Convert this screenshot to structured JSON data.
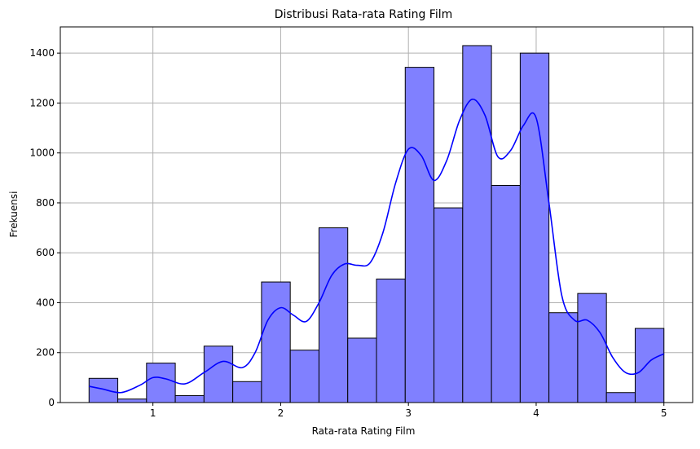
{
  "chart_data": {
    "type": "bar",
    "title": "Distribusi Rata-rata Rating Film",
    "xlabel": "Rata-rata Rating Film",
    "ylabel": "Frekuensi",
    "xlim": [
      0.275,
      5.225
    ],
    "ylim": [
      0,
      1505
    ],
    "grid": true,
    "x_ticks": [
      1,
      2,
      3,
      4,
      5
    ],
    "y_ticks": [
      0,
      200,
      400,
      600,
      800,
      1000,
      1200,
      1400
    ],
    "bin_edges": [
      0.5,
      0.725,
      0.95,
      1.175,
      1.4,
      1.625,
      1.85,
      2.075,
      2.3,
      2.525,
      2.75,
      2.975,
      3.2,
      3.425,
      3.65,
      3.875,
      4.1,
      4.325,
      4.55,
      4.775,
      5.0
    ],
    "values": [
      97,
      14,
      158,
      28,
      226,
      84,
      483,
      210,
      700,
      258,
      495,
      1343,
      780,
      1430,
      870,
      1400,
      360,
      437,
      40,
      297
    ],
    "kde": {
      "x": [
        0.5,
        0.6,
        0.75,
        0.9,
        1.0,
        1.1,
        1.25,
        1.4,
        1.55,
        1.7,
        1.8,
        1.9,
        2.0,
        2.1,
        2.2,
        2.3,
        2.4,
        2.5,
        2.6,
        2.7,
        2.8,
        2.9,
        3.0,
        3.1,
        3.2,
        3.3,
        3.4,
        3.5,
        3.6,
        3.7,
        3.8,
        3.9,
        4.0,
        4.1,
        4.2,
        4.3,
        4.4,
        4.5,
        4.6,
        4.7,
        4.8,
        4.9,
        5.0
      ],
      "y": [
        65,
        55,
        40,
        70,
        100,
        95,
        75,
        120,
        165,
        140,
        200,
        330,
        380,
        350,
        325,
        400,
        510,
        555,
        550,
        560,
        680,
        880,
        1015,
        990,
        890,
        970,
        1130,
        1215,
        1150,
        985,
        1010,
        1110,
        1140,
        800,
        430,
        330,
        330,
        280,
        180,
        120,
        120,
        170,
        195
      ]
    },
    "colors": {
      "bar_fill": "#8080ff",
      "bar_edge": "#000000",
      "kde_line": "#0000ff",
      "grid": "#b0b0b0"
    }
  }
}
